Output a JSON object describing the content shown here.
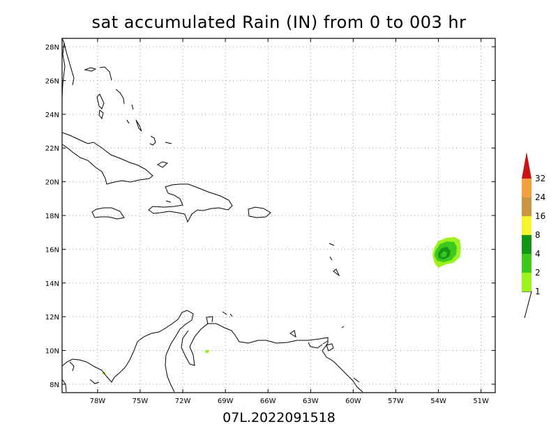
{
  "title": "sat accumulated Rain (IN) from 0 to 003 hr",
  "footer": "07L.2022091518",
  "map": {
    "lon_labels": [
      "78W",
      "75W",
      "72W",
      "69W",
      "66W",
      "63W",
      "60W",
      "57W",
      "54W",
      "51W"
    ],
    "lat_labels": [
      "8N",
      "10N",
      "12N",
      "14N",
      "16N",
      "18N",
      "20N",
      "22N",
      "24N",
      "26N",
      "28N"
    ],
    "lon_range": [
      -80.5,
      -50
    ],
    "lat_range": [
      7.5,
      28.5
    ],
    "grid": true
  },
  "colorbar": {
    "unit": "IN",
    "levels": [
      {
        "label": "1",
        "color": "#9cf21a"
      },
      {
        "label": "2",
        "color": "#3cc81c"
      },
      {
        "label": "4",
        "color": "#149614"
      },
      {
        "label": "8",
        "color": "#f5f52e"
      },
      {
        "label": "16",
        "color": "#c89640"
      },
      {
        "label": "24",
        "color": "#f5a03c"
      },
      {
        "label": "32",
        "color": "#c81414"
      }
    ]
  },
  "rain_features": [
    {
      "name": "storm-07L",
      "lon": -53.3,
      "lat": 15.8,
      "max_in": 4
    },
    {
      "name": "small-cell-venezuela",
      "lon": -70.2,
      "lat": 9.9,
      "max_in": 1
    },
    {
      "name": "small-cell-panama",
      "lon": -77.6,
      "lat": 8.7,
      "max_in": 1
    }
  ]
}
